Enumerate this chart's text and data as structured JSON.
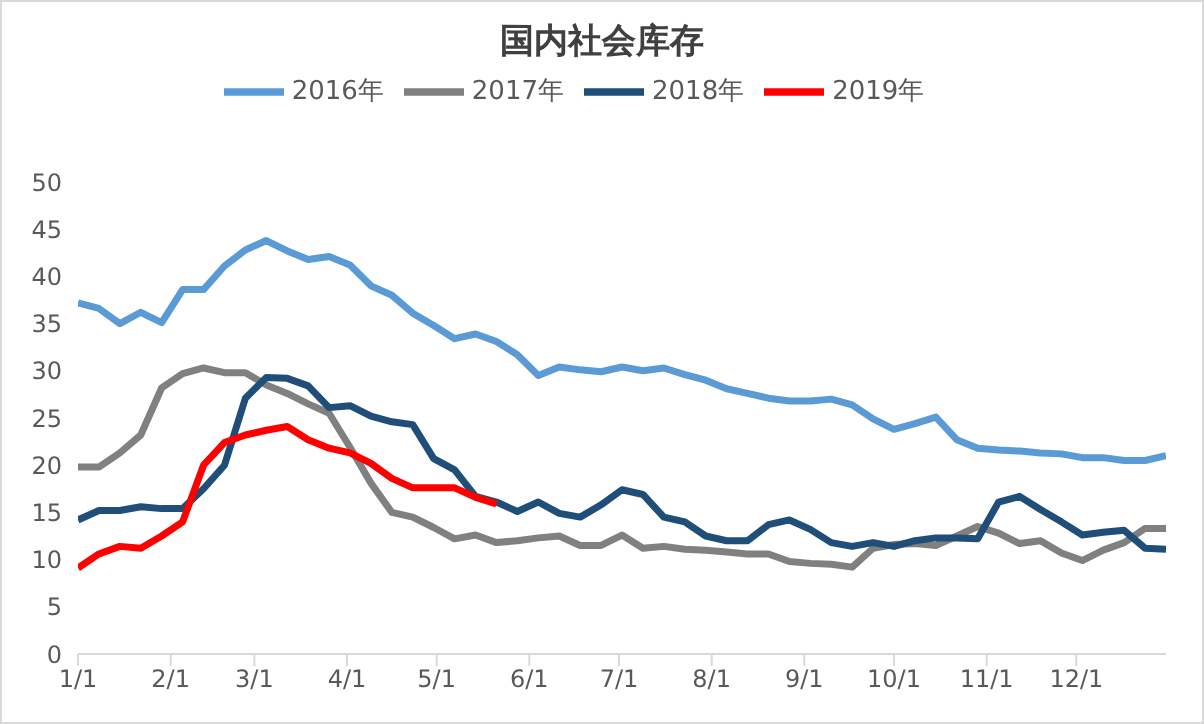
{
  "chart_data": {
    "type": "line",
    "title": "国内社会库存",
    "x": [
      "--01-01",
      "--01-08",
      "--01-15",
      "--01-22",
      "--01-29",
      "--02-05",
      "--02-12",
      "--02-19",
      "--02-26",
      "--03-05",
      "--03-12",
      "--03-19",
      "--03-26",
      "--04-02",
      "--04-09",
      "--04-16",
      "--04-23",
      "--04-30",
      "--05-07",
      "--05-14",
      "--05-21",
      "--05-28",
      "--06-04",
      "--06-11",
      "--06-18",
      "--06-25",
      "--07-02",
      "--07-09",
      "--07-16",
      "--07-23",
      "--07-30",
      "--08-06",
      "--08-13",
      "--08-20",
      "--08-27",
      "--09-03",
      "--09-10",
      "--09-17",
      "--09-24",
      "--10-01",
      "--10-08",
      "--10-15",
      "--10-22",
      "--10-29",
      "--11-05",
      "--11-12",
      "--11-19",
      "--11-26",
      "--12-03",
      "--12-10",
      "--12-17",
      "--12-24",
      "--12-31"
    ],
    "series": [
      {
        "name": "2016年",
        "color": "#5b9bd5",
        "values": [
          37.2,
          36.6,
          35.0,
          36.2,
          35.1,
          38.6,
          38.6,
          41.1,
          42.8,
          43.8,
          42.7,
          41.8,
          42.1,
          41.2,
          39.0,
          38.0,
          36.1,
          34.8,
          33.4,
          33.9,
          33.1,
          31.7,
          29.5,
          30.4,
          30.1,
          29.9,
          30.4,
          30.0,
          30.3,
          29.6,
          29.0,
          28.1,
          27.6,
          27.1,
          26.8,
          26.8,
          27.0,
          26.4,
          24.9,
          23.8,
          24.4,
          25.1,
          22.7,
          21.8,
          21.6,
          21.5,
          21.3,
          21.2,
          20.8,
          20.8,
          20.5,
          20.5,
          21.0
        ]
      },
      {
        "name": "2017年",
        "color": "#808080",
        "values": [
          19.8,
          19.8,
          21.3,
          23.2,
          28.2,
          29.7,
          30.3,
          29.8,
          29.8,
          28.5,
          27.6,
          26.5,
          25.5,
          21.9,
          18.1,
          15.0,
          14.5,
          13.4,
          12.2,
          12.6,
          11.8,
          12.0,
          12.3,
          12.5,
          11.5,
          11.5,
          12.6,
          11.2,
          11.4,
          11.1,
          11.0,
          10.8,
          10.6,
          10.6,
          9.8,
          9.6,
          9.5,
          9.2,
          11.2,
          11.6,
          11.7,
          11.5,
          12.5,
          13.5,
          12.8,
          11.7,
          12.0,
          10.7,
          9.9,
          11.0,
          11.8,
          13.3,
          13.3
        ]
      },
      {
        "name": "2018年",
        "color": "#1f4e79",
        "values": [
          14.2,
          15.2,
          15.2,
          15.6,
          15.4,
          15.4,
          17.5,
          20.0,
          27.1,
          29.3,
          29.2,
          28.4,
          26.1,
          26.3,
          25.2,
          24.6,
          24.3,
          20.7,
          19.5,
          16.7,
          16.1,
          15.1,
          16.1,
          14.9,
          14.5,
          15.8,
          17.4,
          16.9,
          14.5,
          14.0,
          12.5,
          12.0,
          12.0,
          13.7,
          14.2,
          13.2,
          11.8,
          11.4,
          11.8,
          11.4,
          12.0,
          12.3,
          12.3,
          12.2,
          16.1,
          16.7,
          15.3,
          14.0,
          12.6,
          12.9,
          13.1,
          11.2,
          11.1
        ]
      },
      {
        "name": "2019年",
        "color": "#ff0000",
        "values": [
          9.1,
          10.6,
          11.4,
          11.2,
          12.5,
          14.0,
          20.0,
          22.4,
          23.2,
          23.7,
          24.1,
          22.7,
          21.8,
          21.3,
          20.2,
          18.6,
          17.6,
          17.6,
          17.6,
          16.6,
          15.9,
          null,
          null,
          null,
          null,
          null,
          null,
          null,
          null,
          null,
          null,
          null,
          null,
          null,
          null,
          null,
          null,
          null,
          null,
          null,
          null,
          null,
          null,
          null,
          null,
          null,
          null,
          null,
          null,
          null,
          null,
          null,
          null
        ]
      }
    ],
    "xlim": [
      "--01-01",
      "--12-31"
    ],
    "xticks": [
      {
        "value": "--01-01",
        "label": "1/1"
      },
      {
        "value": "--02-01",
        "label": "2/1"
      },
      {
        "value": "--03-01",
        "label": "3/1"
      },
      {
        "value": "--04-01",
        "label": "4/1"
      },
      {
        "value": "--05-01",
        "label": "5/1"
      },
      {
        "value": "--06-01",
        "label": "6/1"
      },
      {
        "value": "--07-01",
        "label": "7/1"
      },
      {
        "value": "--08-01",
        "label": "8/1"
      },
      {
        "value": "--09-01",
        "label": "9/1"
      },
      {
        "value": "--10-01",
        "label": "10/1"
      },
      {
        "value": "--11-01",
        "label": "11/1"
      },
      {
        "value": "--12-01",
        "label": "12/1"
      }
    ],
    "ylim": [
      0,
      50
    ],
    "yticks": [
      0,
      5,
      10,
      15,
      20,
      25,
      30,
      35,
      40,
      45,
      50
    ],
    "legend": "top",
    "marker": "none",
    "line_style": "solid"
  }
}
